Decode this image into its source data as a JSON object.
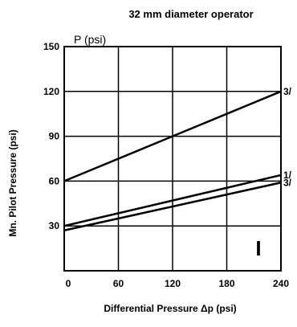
{
  "chart_data": {
    "type": "line",
    "title": "32 mm diameter operator",
    "y_unit": "P (psi)",
    "xlabel": "Differential Pressure Δp (psi)",
    "ylabel": "Mn. Pilot Pressure (psi)",
    "xlim": [
      0,
      240
    ],
    "ylim": [
      0,
      150
    ],
    "x_ticks": [
      0,
      60,
      120,
      180,
      240
    ],
    "y_ticks": [
      30,
      60,
      90,
      120,
      150
    ],
    "x_tick_labels": [
      "0",
      "60",
      "120",
      "180",
      "240"
    ],
    "y_tick_labels": [
      "30",
      "60",
      "90",
      "120",
      "150"
    ],
    "grid": true,
    "annotation": "I",
    "series": [
      {
        "name": "3/",
        "x": [
          0,
          240
        ],
        "y": [
          60,
          120
        ]
      },
      {
        "name": "1/",
        "x": [
          0,
          240
        ],
        "y": [
          30,
          64
        ]
      },
      {
        "name": "3/",
        "x": [
          0,
          240
        ],
        "y": [
          27,
          59
        ]
      }
    ]
  }
}
